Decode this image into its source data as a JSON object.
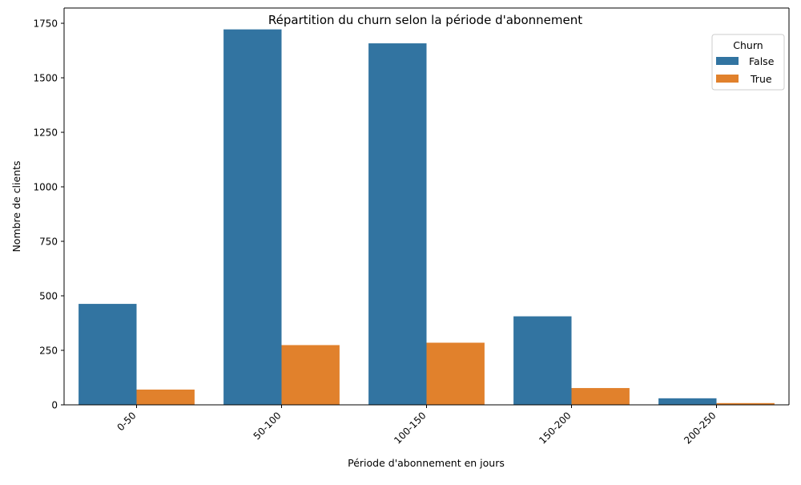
{
  "chart_data": {
    "type": "bar",
    "title": "Répartition du churn selon la période d'abonnement",
    "xlabel": "Période d'abonnement en jours",
    "ylabel": "Nombre de clients",
    "categories": [
      "0-50",
      "50-100",
      "100-150",
      "150-200",
      "200-250"
    ],
    "series": [
      {
        "name": "False",
        "color": "#3274a1",
        "values": [
          463,
          1722,
          1658,
          406,
          30
        ]
      },
      {
        "name": "True",
        "color": "#e1812c",
        "values": [
          70,
          274,
          285,
          77,
          8
        ]
      }
    ],
    "ylim": [
      0,
      1820
    ],
    "yticks": [
      0,
      250,
      500,
      750,
      1000,
      1250,
      1500,
      1750
    ],
    "ytick_labels": [
      "0",
      "250",
      "500",
      "750",
      "1000",
      "1250",
      "1500",
      "1750"
    ],
    "grid": false,
    "legend": {
      "title": "Churn",
      "position": "top-right"
    }
  }
}
